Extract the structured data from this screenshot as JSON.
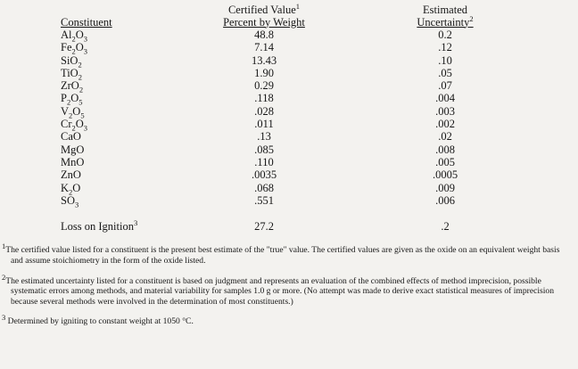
{
  "table": {
    "headers": {
      "constituent": "Constituent",
      "value_line1": "Certified Value^1",
      "value_line2": "Percent by Weight",
      "uncertainty_line1": "Estimated",
      "uncertainty_line2": "Uncertainty^2"
    },
    "rows": [
      {
        "constituent": "Al_2O_3",
        "value": "48.8",
        "uncertainty": "0.2"
      },
      {
        "constituent": "Fe_2O_3",
        "value": "7.14",
        "uncertainty": ".12"
      },
      {
        "constituent": "SiO_2",
        "value": "13.43",
        "uncertainty": ".10"
      },
      {
        "constituent": "TiO_2",
        "value": "1.90",
        "uncertainty": ".05"
      },
      {
        "constituent": "ZrO_2",
        "value": "0.29",
        "uncertainty": ".07"
      },
      {
        "constituent": "P_2O_5",
        "value": ".118",
        "uncertainty": ".004"
      },
      {
        "constituent": "V_2O_5",
        "value": ".028",
        "uncertainty": ".003"
      },
      {
        "constituent": "Cr_2O_3",
        "value": ".011",
        "uncertainty": ".002"
      },
      {
        "constituent": "CaO",
        "value": ".13",
        "uncertainty": ".02"
      },
      {
        "constituent": "MgO",
        "value": ".085",
        "uncertainty": ".008"
      },
      {
        "constituent": "MnO",
        "value": ".110",
        "uncertainty": ".005"
      },
      {
        "constituent": "ZnO",
        "value": ".0035",
        "uncertainty": ".0005"
      },
      {
        "constituent": "K_2O",
        "value": ".068",
        "uncertainty": ".009"
      },
      {
        "constituent": "SO_3",
        "value": ".551",
        "uncertainty": ".006"
      }
    ],
    "footer_row": {
      "constituent": "Loss on Ignition^3",
      "value": "27.2",
      "uncertainty": ".2"
    }
  },
  "footnotes": [
    {
      "marker": "1",
      "text": "The certified value listed for a constituent is the present best estimate of the \"true\" value.  The certified values are given as the oxide on an equivalent weight basis and assume stoichiometry in the form of the oxide listed."
    },
    {
      "marker": "2",
      "text": "The estimated uncertainty listed for a constituent is based on judgment and represents an evaluation of the combined effects of method imprecision, possible systematic errors among methods, and material variability for samples 1.0 g or more.  (No attempt was made to derive exact statistical measures of imprecision because several methods were involved in the determination of most constituents.)"
    },
    {
      "marker": "3",
      "text": " Determined by igniting to constant weight at 1050 °C."
    }
  ]
}
